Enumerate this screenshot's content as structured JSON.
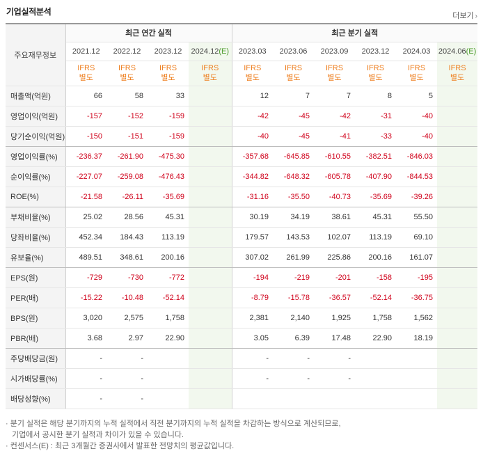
{
  "header": {
    "title": "기업실적분석",
    "more_label": "더보기"
  },
  "table": {
    "row_header": "주요재무정보",
    "groups": [
      "최근 연간 실적",
      "최근 분기 실적"
    ],
    "annual_periods": [
      "2021.12",
      "2022.12",
      "2023.12",
      "2024.12"
    ],
    "quarter_periods": [
      "2023.03",
      "2023.06",
      "2023.09",
      "2023.12",
      "2024.03",
      "2024.06"
    ],
    "estimate_marker": "(E)",
    "ifrs_line1": "IFRS",
    "ifrs_line2": "별도",
    "rows": [
      {
        "label": "매출액(억원)",
        "annual": [
          "66",
          "58",
          "33",
          ""
        ],
        "quarter": [
          "12",
          "7",
          "7",
          "8",
          "5",
          ""
        ]
      },
      {
        "label": "영업이익(억원)",
        "annual": [
          "-157",
          "-152",
          "-159",
          ""
        ],
        "quarter": [
          "-42",
          "-45",
          "-42",
          "-31",
          "-40",
          ""
        ]
      },
      {
        "label": "당기순이익(억원)",
        "annual": [
          "-150",
          "-151",
          "-159",
          ""
        ],
        "quarter": [
          "-40",
          "-45",
          "-41",
          "-33",
          "-40",
          ""
        ]
      },
      {
        "label": "영업이익률(%)",
        "annual": [
          "-236.37",
          "-261.90",
          "-475.30",
          ""
        ],
        "quarter": [
          "-357.68",
          "-645.85",
          "-610.55",
          "-382.51",
          "-846.03",
          ""
        ]
      },
      {
        "label": "순이익률(%)",
        "annual": [
          "-227.07",
          "-259.08",
          "-476.43",
          ""
        ],
        "quarter": [
          "-344.82",
          "-648.32",
          "-605.78",
          "-407.90",
          "-844.53",
          ""
        ]
      },
      {
        "label": "ROE(%)",
        "annual": [
          "-21.58",
          "-26.11",
          "-35.69",
          ""
        ],
        "quarter": [
          "-31.16",
          "-35.50",
          "-40.73",
          "-35.69",
          "-39.26",
          ""
        ]
      },
      {
        "label": "부채비율(%)",
        "annual": [
          "25.02",
          "28.56",
          "45.31",
          ""
        ],
        "quarter": [
          "30.19",
          "34.19",
          "38.61",
          "45.31",
          "55.50",
          ""
        ]
      },
      {
        "label": "당좌비율(%)",
        "annual": [
          "452.34",
          "184.43",
          "113.19",
          ""
        ],
        "quarter": [
          "179.57",
          "143.53",
          "102.07",
          "113.19",
          "69.10",
          ""
        ]
      },
      {
        "label": "유보율(%)",
        "annual": [
          "489.51",
          "348.61",
          "200.16",
          ""
        ],
        "quarter": [
          "307.02",
          "261.99",
          "225.86",
          "200.16",
          "161.07",
          ""
        ]
      },
      {
        "label": "EPS(원)",
        "annual": [
          "-729",
          "-730",
          "-772",
          ""
        ],
        "quarter": [
          "-194",
          "-219",
          "-201",
          "-158",
          "-195",
          ""
        ]
      },
      {
        "label": "PER(배)",
        "annual": [
          "-15.22",
          "-10.48",
          "-52.14",
          ""
        ],
        "quarter": [
          "-8.79",
          "-15.78",
          "-36.57",
          "-52.14",
          "-36.75",
          ""
        ]
      },
      {
        "label": "BPS(원)",
        "annual": [
          "3,020",
          "2,575",
          "1,758",
          ""
        ],
        "quarter": [
          "2,381",
          "2,140",
          "1,925",
          "1,758",
          "1,562",
          ""
        ]
      },
      {
        "label": "PBR(배)",
        "annual": [
          "3.68",
          "2.97",
          "22.90",
          ""
        ],
        "quarter": [
          "3.05",
          "6.39",
          "17.48",
          "22.90",
          "18.19",
          ""
        ]
      },
      {
        "label": "주당배당금(원)",
        "annual": [
          "-",
          "-",
          "",
          ""
        ],
        "quarter": [
          "-",
          "-",
          "-",
          "",
          "",
          ""
        ]
      },
      {
        "label": "시가배당률(%)",
        "annual": [
          "-",
          "-",
          "",
          ""
        ],
        "quarter": [
          "-",
          "-",
          "-",
          "",
          "",
          ""
        ]
      },
      {
        "label": "배당성향(%)",
        "annual": [
          "-",
          "-",
          "",
          ""
        ],
        "quarter": [
          "",
          "",
          "",
          "",
          "",
          ""
        ]
      }
    ]
  },
  "notes": [
    "· 분기 실적은 해당 분기까지의 누적 실적에서 직전 분기까지의 누적 실적을 차감하는 방식으로 계산되므로,",
    "기업에서 공시한 분기 실적과 차이가 있을 수 있습니다.",
    "· 컨센서스(E) : 최근 3개월간 증권사에서 발표한 전망치의 평균값입니다."
  ]
}
